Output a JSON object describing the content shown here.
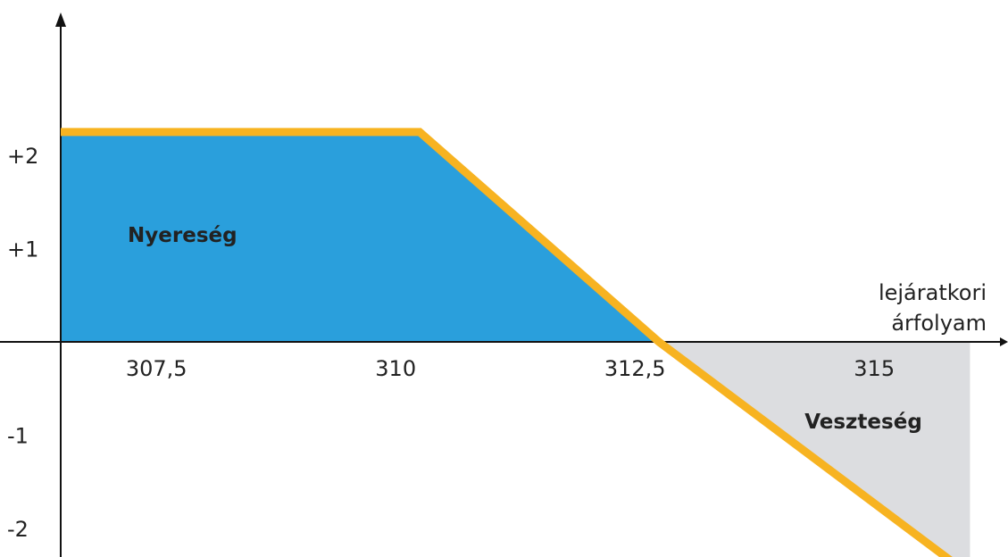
{
  "chart_data": {
    "type": "area",
    "title": "",
    "ylabel": "",
    "xlabel": [
      "lejáratkori",
      "árfolyam"
    ],
    "x_ticks": [
      {
        "value": 307.5,
        "label": "307,5"
      },
      {
        "value": 310,
        "label": "310"
      },
      {
        "value": 312.5,
        "label": "312,5"
      },
      {
        "value": 315,
        "label": "315"
      }
    ],
    "y_ticks": [
      {
        "value": 2,
        "label": "+2"
      },
      {
        "value": 1,
        "label": "+1"
      },
      {
        "value": -1,
        "label": "-1"
      },
      {
        "value": -2,
        "label": "-2"
      }
    ],
    "xlim": [
      306.5,
      316
    ],
    "ylim": [
      -2.6,
      3.75
    ],
    "payoff_line": {
      "x": [
        306.5,
        310.25,
        312.75,
        316
      ],
      "y": [
        2.25,
        2.25,
        0,
        -2.5
      ]
    },
    "regions": [
      {
        "name": "Nyereség",
        "label": "Nyereség",
        "color": "#2a9fdc",
        "x_start": 306.5,
        "x_end": 312.75,
        "label_x": 307.2,
        "label_y": 1.15
      },
      {
        "name": "Veszteség",
        "label": "Veszteség",
        "color": "#dcdde0",
        "x_start": 312.75,
        "x_end": 316,
        "label_x": 315.5,
        "label_y": -0.85
      }
    ],
    "colors": {
      "line": "#f7b321",
      "axis": "#111111",
      "profit": "#2a9fdc",
      "loss": "#dcdde0"
    },
    "grid": false
  }
}
